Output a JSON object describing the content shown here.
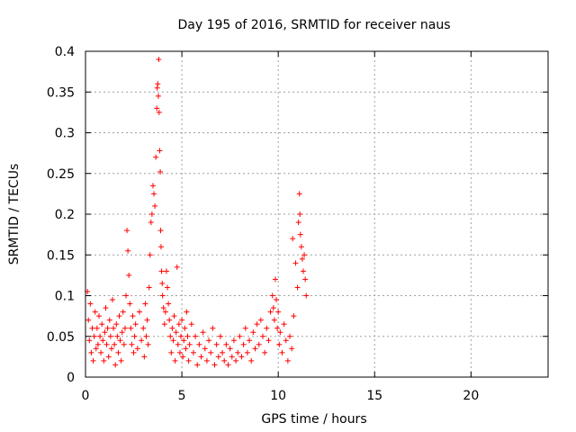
{
  "chart_data": {
    "type": "scatter",
    "title": "Day 195 of 2016, SRMTID for receiver naus",
    "xlabel": "GPS time / hours",
    "ylabel": "SRMTID / TECUs",
    "xlim": [
      0,
      24
    ],
    "ylim": [
      0,
      0.4
    ],
    "grid": true,
    "marker": "+",
    "marker_color": "#ff0000",
    "xticks": [
      {
        "value": 0,
        "label": "0"
      },
      {
        "value": 5,
        "label": "5"
      },
      {
        "value": 10,
        "label": "10"
      },
      {
        "value": 15,
        "label": "15"
      },
      {
        "value": 20,
        "label": "20"
      }
    ],
    "yticks": [
      {
        "value": 0,
        "label": "0"
      },
      {
        "value": 0.05,
        "label": "0.05"
      },
      {
        "value": 0.1,
        "label": "0.1"
      },
      {
        "value": 0.15,
        "label": "0.15"
      },
      {
        "value": 0.2,
        "label": "0.2"
      },
      {
        "value": 0.25,
        "label": "0.25"
      },
      {
        "value": 0.3,
        "label": "0.3"
      },
      {
        "value": 0.35,
        "label": "0.35"
      },
      {
        "value": 0.4,
        "label": "0.4"
      }
    ],
    "series": [
      {
        "name": "naus",
        "points": [
          [
            0.1,
            0.105
          ],
          [
            0.15,
            0.07
          ],
          [
            0.2,
            0.045
          ],
          [
            0.25,
            0.09
          ],
          [
            0.3,
            0.03
          ],
          [
            0.35,
            0.06
          ],
          [
            0.4,
            0.02
          ],
          [
            0.45,
            0.05
          ],
          [
            0.5,
            0.08
          ],
          [
            0.55,
            0.035
          ],
          [
            0.6,
            0.06
          ],
          [
            0.65,
            0.04
          ],
          [
            0.7,
            0.075
          ],
          [
            0.75,
            0.05
          ],
          [
            0.8,
            0.03
          ],
          [
            0.85,
            0.065
          ],
          [
            0.9,
            0.045
          ],
          [
            0.95,
            0.02
          ],
          [
            1.0,
            0.055
          ],
          [
            1.05,
            0.085
          ],
          [
            1.1,
            0.04
          ],
          [
            1.15,
            0.06
          ],
          [
            1.2,
            0.025
          ],
          [
            1.25,
            0.07
          ],
          [
            1.3,
            0.05
          ],
          [
            1.35,
            0.035
          ],
          [
            1.4,
            0.095
          ],
          [
            1.45,
            0.06
          ],
          [
            1.5,
            0.04
          ],
          [
            1.55,
            0.015
          ],
          [
            1.6,
            0.065
          ],
          [
            1.65,
            0.05
          ],
          [
            1.7,
            0.03
          ],
          [
            1.75,
            0.075
          ],
          [
            1.8,
            0.045
          ],
          [
            1.85,
            0.02
          ],
          [
            1.9,
            0.055
          ],
          [
            1.95,
            0.08
          ],
          [
            2.0,
            0.04
          ],
          [
            2.05,
            0.06
          ],
          [
            2.1,
            0.1
          ],
          [
            2.15,
            0.18
          ],
          [
            2.2,
            0.155
          ],
          [
            2.25,
            0.125
          ],
          [
            2.3,
            0.09
          ],
          [
            2.35,
            0.06
          ],
          [
            2.4,
            0.04
          ],
          [
            2.45,
            0.075
          ],
          [
            2.5,
            0.03
          ],
          [
            2.55,
            0.05
          ],
          [
            2.6,
            0.065
          ],
          [
            2.7,
            0.035
          ],
          [
            2.8,
            0.08
          ],
          [
            2.9,
            0.045
          ],
          [
            3.0,
            0.06
          ],
          [
            3.05,
            0.025
          ],
          [
            3.1,
            0.09
          ],
          [
            3.15,
            0.05
          ],
          [
            3.2,
            0.07
          ],
          [
            3.25,
            0.04
          ],
          [
            3.3,
            0.11
          ],
          [
            3.35,
            0.15
          ],
          [
            3.4,
            0.19
          ],
          [
            3.45,
            0.2
          ],
          [
            3.5,
            0.235
          ],
          [
            3.55,
            0.225
          ],
          [
            3.6,
            0.21
          ],
          [
            3.65,
            0.27
          ],
          [
            3.7,
            0.33
          ],
          [
            3.72,
            0.355
          ],
          [
            3.75,
            0.36
          ],
          [
            3.78,
            0.345
          ],
          [
            3.8,
            0.39
          ],
          [
            3.82,
            0.325
          ],
          [
            3.85,
            0.278
          ],
          [
            3.88,
            0.252
          ],
          [
            3.9,
            0.18
          ],
          [
            3.92,
            0.16
          ],
          [
            3.95,
            0.13
          ],
          [
            3.98,
            0.115
          ],
          [
            4.0,
            0.1
          ],
          [
            4.05,
            0.085
          ],
          [
            4.1,
            0.065
          ],
          [
            4.15,
            0.08
          ],
          [
            4.2,
            0.13
          ],
          [
            4.25,
            0.11
          ],
          [
            4.3,
            0.09
          ],
          [
            4.35,
            0.07
          ],
          [
            4.4,
            0.05
          ],
          [
            4.45,
            0.03
          ],
          [
            4.5,
            0.06
          ],
          [
            4.55,
            0.045
          ],
          [
            4.6,
            0.075
          ],
          [
            4.65,
            0.02
          ],
          [
            4.7,
            0.055
          ],
          [
            4.75,
            0.135
          ],
          [
            4.8,
            0.04
          ],
          [
            4.85,
            0.065
          ],
          [
            4.9,
            0.03
          ],
          [
            4.95,
            0.05
          ],
          [
            5.0,
            0.07
          ],
          [
            5.05,
            0.025
          ],
          [
            5.1,
            0.045
          ],
          [
            5.15,
            0.06
          ],
          [
            5.2,
            0.035
          ],
          [
            5.25,
            0.08
          ],
          [
            5.3,
            0.05
          ],
          [
            5.35,
            0.02
          ],
          [
            5.4,
            0.04
          ],
          [
            5.5,
            0.065
          ],
          [
            5.6,
            0.03
          ],
          [
            5.7,
            0.05
          ],
          [
            5.8,
            0.015
          ],
          [
            5.9,
            0.04
          ],
          [
            6.0,
            0.025
          ],
          [
            6.1,
            0.055
          ],
          [
            6.2,
            0.035
          ],
          [
            6.3,
            0.02
          ],
          [
            6.4,
            0.045
          ],
          [
            6.5,
            0.03
          ],
          [
            6.6,
            0.06
          ],
          [
            6.7,
            0.015
          ],
          [
            6.8,
            0.04
          ],
          [
            6.9,
            0.025
          ],
          [
            7.0,
            0.05
          ],
          [
            7.1,
            0.03
          ],
          [
            7.2,
            0.02
          ],
          [
            7.3,
            0.04
          ],
          [
            7.4,
            0.015
          ],
          [
            7.5,
            0.035
          ],
          [
            7.6,
            0.025
          ],
          [
            7.7,
            0.045
          ],
          [
            7.8,
            0.02
          ],
          [
            7.9,
            0.03
          ],
          [
            8.0,
            0.05
          ],
          [
            8.1,
            0.025
          ],
          [
            8.2,
            0.04
          ],
          [
            8.3,
            0.06
          ],
          [
            8.4,
            0.03
          ],
          [
            8.5,
            0.045
          ],
          [
            8.6,
            0.02
          ],
          [
            8.7,
            0.055
          ],
          [
            8.8,
            0.035
          ],
          [
            8.9,
            0.065
          ],
          [
            9.0,
            0.04
          ],
          [
            9.1,
            0.07
          ],
          [
            9.2,
            0.05
          ],
          [
            9.3,
            0.03
          ],
          [
            9.4,
            0.06
          ],
          [
            9.5,
            0.045
          ],
          [
            9.6,
            0.08
          ],
          [
            9.7,
            0.1
          ],
          [
            9.75,
            0.085
          ],
          [
            9.8,
            0.07
          ],
          [
            9.85,
            0.12
          ],
          [
            9.9,
            0.095
          ],
          [
            9.95,
            0.06
          ],
          [
            10.0,
            0.08
          ],
          [
            10.05,
            0.04
          ],
          [
            10.1,
            0.055
          ],
          [
            10.2,
            0.03
          ],
          [
            10.3,
            0.065
          ],
          [
            10.4,
            0.045
          ],
          [
            10.5,
            0.02
          ],
          [
            10.6,
            0.05
          ],
          [
            10.7,
            0.035
          ],
          [
            10.75,
            0.17
          ],
          [
            10.8,
            0.075
          ],
          [
            10.9,
            0.14
          ],
          [
            11.0,
            0.11
          ],
          [
            11.05,
            0.19
          ],
          [
            11.1,
            0.225
          ],
          [
            11.12,
            0.2
          ],
          [
            11.15,
            0.175
          ],
          [
            11.2,
            0.16
          ],
          [
            11.25,
            0.145
          ],
          [
            11.3,
            0.13
          ],
          [
            11.35,
            0.15
          ],
          [
            11.4,
            0.12
          ],
          [
            11.45,
            0.1
          ]
        ]
      }
    ]
  }
}
